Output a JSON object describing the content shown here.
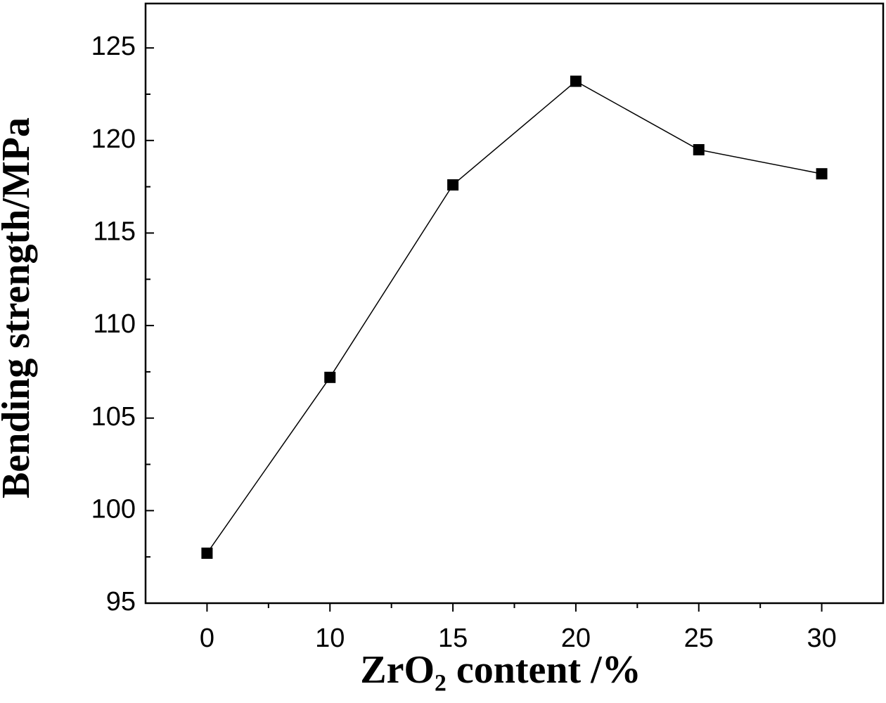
{
  "chart_data": {
    "type": "line",
    "x_label": "ZrO₂ content /%",
    "y_label": "Bending strength/MPa",
    "categories": [
      "0",
      "10",
      "15",
      "20",
      "25",
      "30"
    ],
    "series": [
      {
        "color": "#000000",
        "values": [
          97.7,
          107.2,
          117.6,
          123.2,
          119.5,
          118.2
        ]
      }
    ],
    "ylim": [
      95,
      127.4
    ],
    "yticks": [
      95,
      100,
      105,
      110,
      115,
      120,
      125
    ],
    "grid": false
  }
}
